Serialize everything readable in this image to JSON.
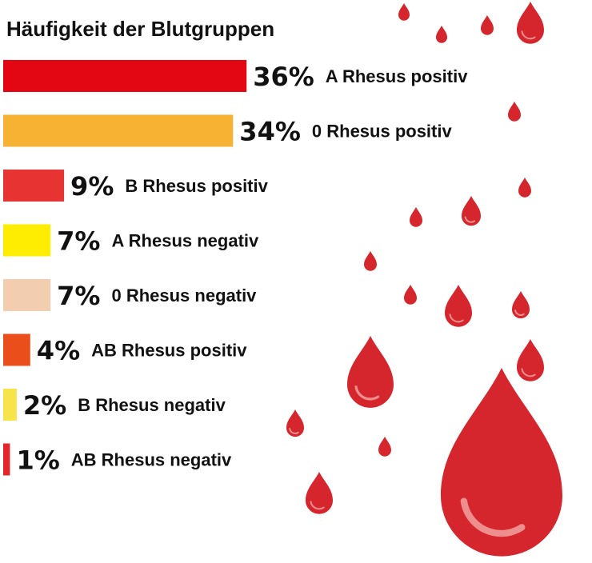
{
  "chart_data": {
    "type": "bar",
    "orientation": "horizontal",
    "title": "Häufigkeit der Blutgruppen",
    "categories": [
      "A Rhesus positiv",
      "0 Rhesus positiv",
      "B Rhesus positiv",
      "A Rhesus negativ",
      "0 Rhesus negativ",
      "AB Rhesus positiv",
      "B Rhesus negativ",
      "AB Rhesus negativ"
    ],
    "values": [
      36,
      34,
      9,
      7,
      7,
      4,
      2,
      1
    ],
    "value_labels": [
      "36%",
      "34%",
      "9%",
      "7%",
      "7%",
      "4%",
      "2%",
      "1%"
    ],
    "colors": [
      "#e30613",
      "#f7b133",
      "#e73331",
      "#ffed00",
      "#f2cdb0",
      "#e94e1b",
      "#f7e34a",
      "#e3262e"
    ],
    "unit": "%",
    "legend": "none",
    "grid": false
  },
  "decoration": {
    "drop_color": "#d6262d",
    "highlight_color": "#ee8f8f"
  }
}
